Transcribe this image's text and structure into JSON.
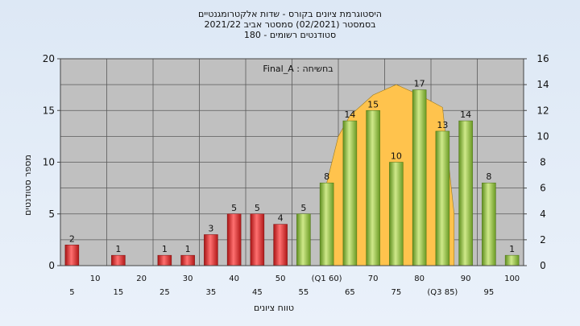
{
  "chart_data": {
    "type": "bar",
    "title_lines": [
      "היסטוגרמת ציונים בקורס - שדות אלקטרומגנטיים",
      "בסמסטר  (02/2021)  סמסטר אביב 2021/22",
      "סטודנטים רשומים - 180"
    ],
    "inner_note": "בחשיחה : Final_A",
    "ylabel": "מספר סטודנטים",
    "xlabel": "טווח ציונים",
    "ylim": [
      0,
      20
    ],
    "y_ticks": [
      "0",
      "5",
      "10",
      "15",
      "20"
    ],
    "y2lim": [
      0,
      16
    ],
    "y2_ticks": [
      "0",
      "2",
      "4",
      "6",
      "8",
      "10",
      "12",
      "14",
      "16"
    ],
    "categories": [
      "5",
      "10",
      "15",
      "20",
      "25",
      "30",
      "35",
      "40",
      "45",
      "50",
      "55",
      "(Q1 60)",
      "65",
      "70",
      "75",
      "80",
      "(Q3 85)",
      "90",
      "95",
      "100"
    ],
    "series": [
      {
        "values": [
          2,
          0,
          1,
          0,
          1,
          1,
          3,
          5,
          5,
          4,
          5,
          8,
          14,
          15,
          10,
          17,
          13,
          14,
          8,
          1
        ],
        "value_labels": [
          "2",
          "",
          "1",
          "",
          "1",
          "1",
          "3",
          "5",
          "5",
          "4",
          "5",
          "8",
          "14",
          "15",
          "10",
          "17",
          "13",
          "14",
          "8",
          "1"
        ]
      }
    ],
    "colors": {
      "fail_bar": "#e03030",
      "pass_bar": "#8ec03a",
      "curve_fill": "#ffc34d",
      "plot_bg": "#c0c0c0",
      "grid": "#5a5a5a"
    },
    "pass_threshold": 55,
    "curve": {
      "x": [
        60,
        62.5,
        65,
        70,
        75,
        80,
        85,
        87.5
      ],
      "y": [
        8,
        12.5,
        14.5,
        16.5,
        17.5,
        16.5,
        15.3,
        5
      ]
    },
    "grid": true
  }
}
